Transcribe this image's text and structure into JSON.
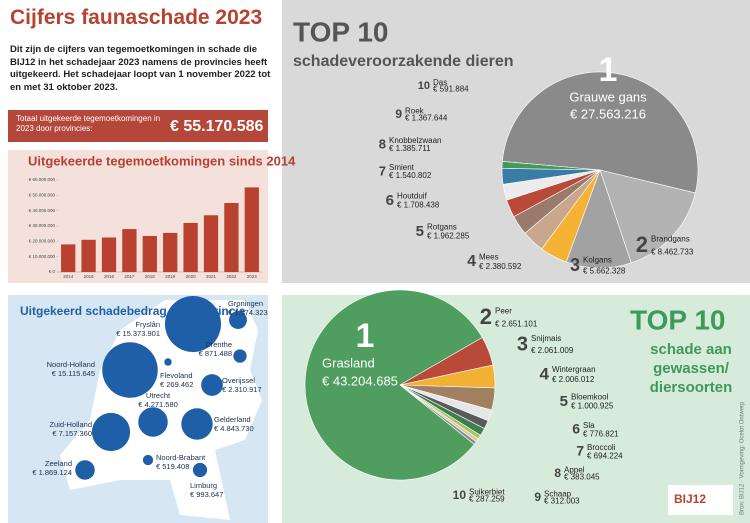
{
  "header": {
    "title": "Cijfers faunaschade 2023",
    "intro": "Dit zijn de cijfers van tegemoetkomingen in schade die BIJ12 in het schadejaar 2023 namens de provincies heeft uitgekeerd. Het schadejaar loopt van 1 november 2022 tot en met 31 oktober 2023."
  },
  "total": {
    "label": "Totaal uitgekeerde tegemoetkomingen in 2023 door provincies:",
    "value": "€ 55.170.586"
  },
  "source": "Bron: BIJ12 · Vormgeving: Ocelot Ontwerp",
  "logo": "BIJ12",
  "chart_data": [
    {
      "type": "bar",
      "title": "Uitgekeerde tegemoetkomingen sinds 2014",
      "color": "#b8412f",
      "grid": false,
      "categories": [
        "2014",
        "2015",
        "2016",
        "2017",
        "2018",
        "2019",
        "2020",
        "2021",
        "2022",
        "2023"
      ],
      "values": [
        18000000,
        21000000,
        22500000,
        28000000,
        23500000,
        25500000,
        32000000,
        37000000,
        45000000,
        55170586
      ],
      "ylim": [
        0,
        60000000
      ],
      "yticks": [
        {
          "value": 0,
          "label": "€ 0"
        },
        {
          "value": 10000000,
          "label": "€ 10.000.000"
        },
        {
          "value": 20000000,
          "label": "€ 20.000.000"
        },
        {
          "value": 30000000,
          "label": "€ 30.000.000"
        },
        {
          "value": 40000000,
          "label": "€ 40.000.000"
        },
        {
          "value": 50000000,
          "label": "€ 50.000.000"
        },
        {
          "value": 60000000,
          "label": "€ 60.000.000"
        }
      ]
    },
    {
      "type": "pie",
      "title": "TOP 10",
      "subtitle": "schadeveroorzakende dieren",
      "ranks": [
        "1",
        "2",
        "3",
        "4",
        "5",
        "6",
        "7",
        "8",
        "9",
        "10"
      ],
      "categories": [
        "Grauwe gans",
        "Brandgans",
        "Kolgans",
        "Mees",
        "Rotgans",
        "Houtduif",
        "Smient",
        "Knobbelzwaan",
        "Roek",
        "Das"
      ],
      "values": [
        27563216,
        8462733,
        5662328,
        2380592,
        1962285,
        1708438,
        1540802,
        1385711,
        1367644,
        591884
      ],
      "value_labels": [
        "€ 27.563.216",
        "€ 8.462.733",
        "€ 5.662.328",
        "€ 2.380.592",
        "€ 1.962.285",
        "€ 1.708.438",
        "€ 1.540.802",
        "€ 1.385.711",
        "€ 1.367.644",
        "€ 591.884"
      ],
      "colors": [
        "#8a8a8a",
        "#b3b3b3",
        "#a2a2a2",
        "#f5b335",
        "#c9a78d",
        "#9a7b6b",
        "#b94a3a",
        "#ececec",
        "#3a7ca5",
        "#3f9a5b"
      ]
    },
    {
      "type": "bubble",
      "title": "Uitgekeerd schadebedrag per provincie",
      "color": "#1f5fa8",
      "categories": [
        "Groningen",
        "Fryslân",
        "Drenthe",
        "Noord-Holland",
        "Flevoland",
        "Overijssel",
        "Utrecht",
        "Zuid-Holland",
        "Gelderland",
        "Zeeland",
        "Noord-Brabant",
        "Limburg"
      ],
      "values": [
        1574323,
        15373901,
        871488,
        15115645,
        269462,
        2310917,
        4271580,
        7157360,
        4843730,
        1869124,
        519408,
        993647
      ],
      "value_labels": [
        "€ 1.574.323",
        "€ 15.373.901",
        "€ 871.488",
        "€ 15.115.645",
        "€ 269.462",
        "€ 2.310.917",
        "€ 4.271.580",
        "€ 7.157.360",
        "€ 4.843.730",
        "€ 1.869.124",
        "€ 519.408",
        "€ 993.647"
      ]
    },
    {
      "type": "pie",
      "title": "TOP 10",
      "subtitle": "schade aan gewassen/ diersoorten",
      "ranks": [
        "1",
        "2",
        "3",
        "4",
        "5",
        "6",
        "7",
        "8",
        "9",
        "10"
      ],
      "categories": [
        "Grasland",
        "Peer",
        "Snijmais",
        "Wintergraan",
        "Bloemkool",
        "Sla",
        "Broccoli",
        "Appel",
        "Schaap",
        "Suikerbiet"
      ],
      "values": [
        43204685,
        2651101,
        2061009,
        2006012,
        1000925,
        776821,
        694224,
        383045,
        312003,
        287259
      ],
      "value_labels": [
        "€ 43.204.685",
        "€ 2.651.101",
        "€ 2.061.009",
        "€ 2.006.012",
        "€ 1.000.925",
        "€ 776.821",
        "€ 694.224",
        "€ 383.045",
        "€ 312.003",
        "€ 287.259"
      ],
      "colors": [
        "#4f9e5f",
        "#b94a3a",
        "#f2b134",
        "#a08060",
        "#e6e6e6",
        "#5a5a5a",
        "#3f7f4f",
        "#a5c45a",
        "#d7c9a9",
        "#8a8a8a"
      ]
    }
  ]
}
